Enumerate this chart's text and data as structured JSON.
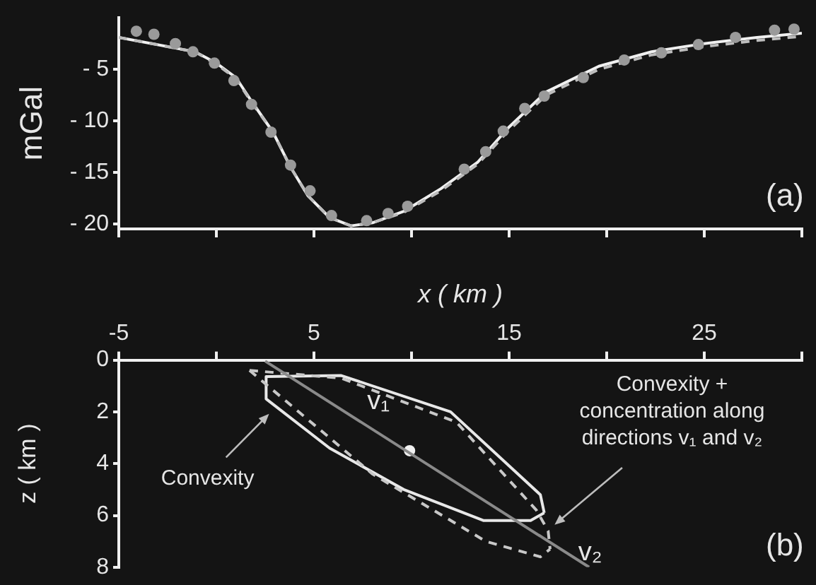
{
  "chart_data": [
    {
      "type": "line",
      "ylabel": "mGal",
      "xlim": [
        -5,
        30
      ],
      "xticks": [
        -5,
        0,
        5,
        10,
        15,
        20,
        25,
        30
      ],
      "ylim": [
        -20.5,
        0
      ],
      "yticks": [
        {
          "value": -20,
          "label": "- 20"
        },
        {
          "value": -15,
          "label": "- 15"
        },
        {
          "value": -10,
          "label": "- 10"
        },
        {
          "value": -5,
          "label": "- 5"
        }
      ],
      "tick_labels": "y",
      "grid": false,
      "legend": false,
      "annotations": [
        "(a)"
      ],
      "series": [
        {
          "type": "scatter",
          "marker": "circle",
          "color": "#9a9a9a",
          "x": [
            -4.1,
            -3.2,
            -2.1,
            -1.2,
            -0.1,
            0.9,
            1.8,
            2.8,
            3.8,
            4.8,
            5.9,
            7.7,
            8.8,
            9.8,
            12.7,
            13.8,
            14.7,
            15.8,
            16.8,
            18.8,
            20.9,
            22.8,
            24.7,
            26.6,
            28.6,
            29.6
          ],
          "values": [
            -1.3,
            -1.6,
            -2.5,
            -3.3,
            -4.4,
            -6.1,
            -8.4,
            -11.1,
            -14.3,
            -16.8,
            -19.2,
            -19.7,
            -19.0,
            -18.3,
            -14.7,
            -13.0,
            -11.0,
            -8.8,
            -7.6,
            -5.8,
            -4.1,
            -3.4,
            -2.6,
            -1.9,
            -1.2,
            -1.1
          ]
        },
        {
          "marker": "none",
          "line_style": "dashed",
          "color": "#bdbdbd",
          "x": [
            -5,
            -1.1,
            0,
            1,
            1.8,
            2.9,
            3.8,
            4.7,
            5.8,
            6.9,
            8.0,
            9.6,
            11.5,
            13.4,
            15,
            16.9,
            19.6,
            22.3,
            25,
            27.7,
            30
          ],
          "values": [
            -1.9,
            -3.3,
            -4.5,
            -5.9,
            -8.2,
            -11.1,
            -14.5,
            -17.3,
            -19.4,
            -20.2,
            -19.9,
            -18.9,
            -16.8,
            -14.2,
            -10.9,
            -7.5,
            -5.0,
            -3.6,
            -2.8,
            -2.2,
            -1.8
          ]
        },
        {
          "marker": "none",
          "line_style": "solid",
          "color": "#f0f0f0",
          "x": [
            -5,
            -1.1,
            0,
            1,
            1.8,
            2.9,
            3.8,
            4.7,
            5.8,
            6.9,
            8.0,
            9.6,
            11.5,
            13.4,
            15,
            16.9,
            19.6,
            22.3,
            25,
            27.7,
            30
          ],
          "values": [
            -1.9,
            -3.3,
            -4.4,
            -5.8,
            -8.1,
            -11.1,
            -14.5,
            -17.3,
            -19.4,
            -20.2,
            -19.9,
            -18.8,
            -16.6,
            -14.0,
            -10.6,
            -7.2,
            -4.7,
            -3.3,
            -2.5,
            -1.9,
            -1.5
          ]
        }
      ]
    },
    {
      "type": "line",
      "xlabel": "x ( km )",
      "ylabel": "z ( km )",
      "xlim": [
        -5,
        30
      ],
      "xticks": [
        -5,
        {
          "value": 0,
          "label": null
        },
        5,
        {
          "value": 10,
          "label": null
        },
        15,
        {
          "value": 20,
          "label": null
        },
        25,
        {
          "value": 30,
          "label": null
        }
      ],
      "ylim": [
        8,
        0
      ],
      "yticks": [
        0,
        2,
        4,
        6,
        8
      ],
      "grid": false,
      "legend": false,
      "annotations": [
        "v₁",
        "v₂",
        "(b)",
        "Convexity",
        "Convexity + concentration along directions v₁ and v₂"
      ],
      "series": [
        {
          "marker": "none",
          "line_style": "solid",
          "color": "#8a8a8a",
          "x": [
            2.5,
            19.1
          ],
          "values": [
            0.04,
            8
          ]
        },
        {
          "marker": "none",
          "line_style": "dashed",
          "color": "#c8c8c8",
          "x": [
            1.7,
            6.4,
            12.3,
            16.4,
            17.0,
            17.1
          ],
          "values": [
            0.4,
            0.7,
            2.4,
            5.8,
            6.6,
            7.3
          ]
        },
        {
          "marker": "none",
          "line_style": "dashed",
          "color": "#c8c8c8",
          "x": [
            1.7,
            8.0,
            13.8,
            16.6,
            17.1
          ],
          "values": [
            0.4,
            4.4,
            7.0,
            7.6,
            7.3
          ]
        },
        {
          "marker": "none",
          "line_style": "solid",
          "color": "#e8e8e8",
          "x": [
            2.55,
            6.4,
            12.0,
            16.6,
            16.8
          ],
          "values": [
            0.64,
            0.6,
            2.0,
            5.2,
            5.9
          ]
        },
        {
          "marker": "none",
          "line_style": "solid",
          "color": "#e8e8e8",
          "x": [
            2.55,
            2.55,
            5.8,
            9.6,
            13.7,
            16.1,
            16.8
          ],
          "values": [
            0.64,
            1.5,
            3.4,
            5.0,
            6.2,
            6.2,
            5.9
          ]
        },
        {
          "type": "scatter",
          "marker": "circle",
          "color": "#f0f0f0",
          "x": [
            9.9
          ],
          "values": [
            3.5
          ]
        }
      ]
    }
  ]
}
